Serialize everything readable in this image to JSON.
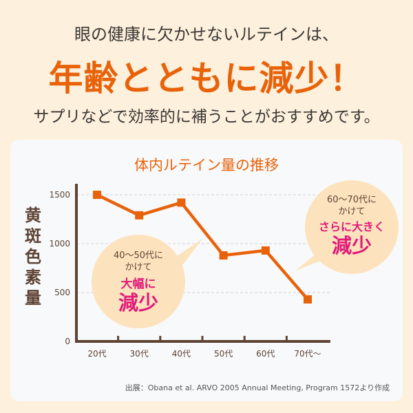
{
  "header": {
    "line1": "眼の健康に欠かせないルテインは、",
    "line2": "年齢とともに減少！",
    "line3": "サプリなどで効率的に補うことがおすすめです。"
  },
  "chart_data": {
    "type": "line",
    "title": "体内ルテイン量の推移",
    "ylabel": "黄斑色素量",
    "xlabel": "",
    "categories": [
      "20代",
      "30代",
      "40代",
      "50代",
      "60代",
      "70代〜"
    ],
    "series": [
      {
        "name": "黄斑色素量",
        "values": [
          1500,
          1290,
          1420,
          880,
          930,
          430
        ]
      }
    ],
    "ylim": [
      0,
      1600
    ],
    "yticks": [
      "0",
      "500",
      "1000",
      "1500"
    ],
    "grid": true,
    "line_color": "#e8620a"
  },
  "callouts": [
    {
      "text1": "40〜50代に",
      "text2": "かけて",
      "emph1": "大幅に",
      "emph2": "減少"
    },
    {
      "text1": "60〜70代に",
      "text2": "かけて",
      "emph1": "さらに大きく",
      "emph2": "減少"
    }
  ],
  "source": "出展：Obana et al. ARVO 2005 Annual Meeting, Program 1572より作成"
}
